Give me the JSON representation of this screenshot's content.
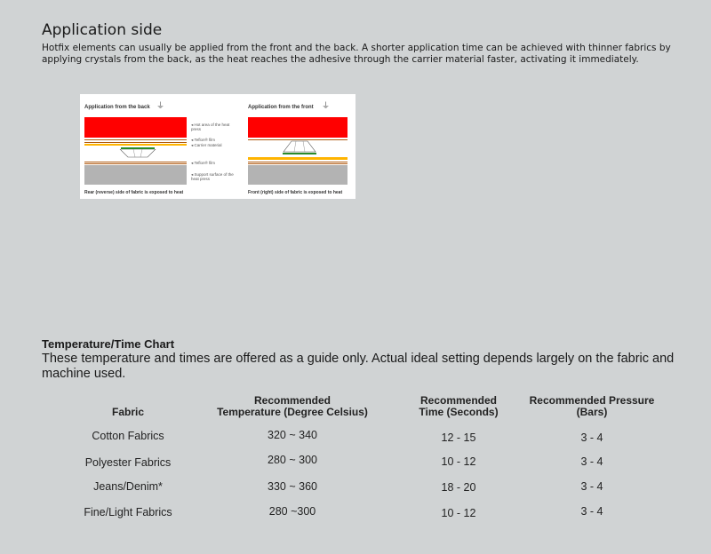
{
  "title": "Application side",
  "intro": "Hotfix elements can usually be applied from the front and the back. A shorter application time can be achieved with thinner fabrics by applying crystals from the back, as the heat reaches the adhesive through the carrier material faster, activating it immediately.",
  "diagram": {
    "back": {
      "title": "Application from the back",
      "caption": "Rear (reverse) side of fabric is exposed to heat"
    },
    "front": {
      "title": "Application from the front",
      "caption": "Front (right) side of fabric is exposed to heat"
    },
    "labels": [
      "Hot area of the heat press",
      "Teflon® film",
      "Carrier material",
      "Teflon® film",
      "Support surface of the heat press"
    ],
    "colors": {
      "heat": "#ff0000",
      "support": "#b3b3b3",
      "film": "#b05a10",
      "carrier": "#ffb400",
      "adhesive": "#2a8a2a"
    }
  },
  "chart": {
    "title": "Temperature/Time Chart",
    "description": "These temperature and times are offered as a guide only. Actual ideal setting depends largely on the fabric and machine used.",
    "headers": [
      [
        "",
        "Fabric"
      ],
      [
        "Recommended",
        "Temperature (Degree Celsius)"
      ],
      [
        "Recommended",
        "Time (Seconds)"
      ],
      [
        "Recommended Pressure",
        "(Bars)"
      ]
    ],
    "rows": [
      [
        "Cotton Fabrics",
        "320 ~ 340",
        "12 - 15",
        "3 - 4"
      ],
      [
        "Polyester Fabrics",
        "280 ~ 300",
        "10 - 12",
        "3 - 4"
      ],
      [
        "Jeans/Denim*",
        "330 ~ 360",
        "18 - 20",
        "3 - 4"
      ],
      [
        "Fine/Light Fabrics",
        "280 ~300",
        "10 - 12",
        "3 - 4"
      ]
    ]
  }
}
